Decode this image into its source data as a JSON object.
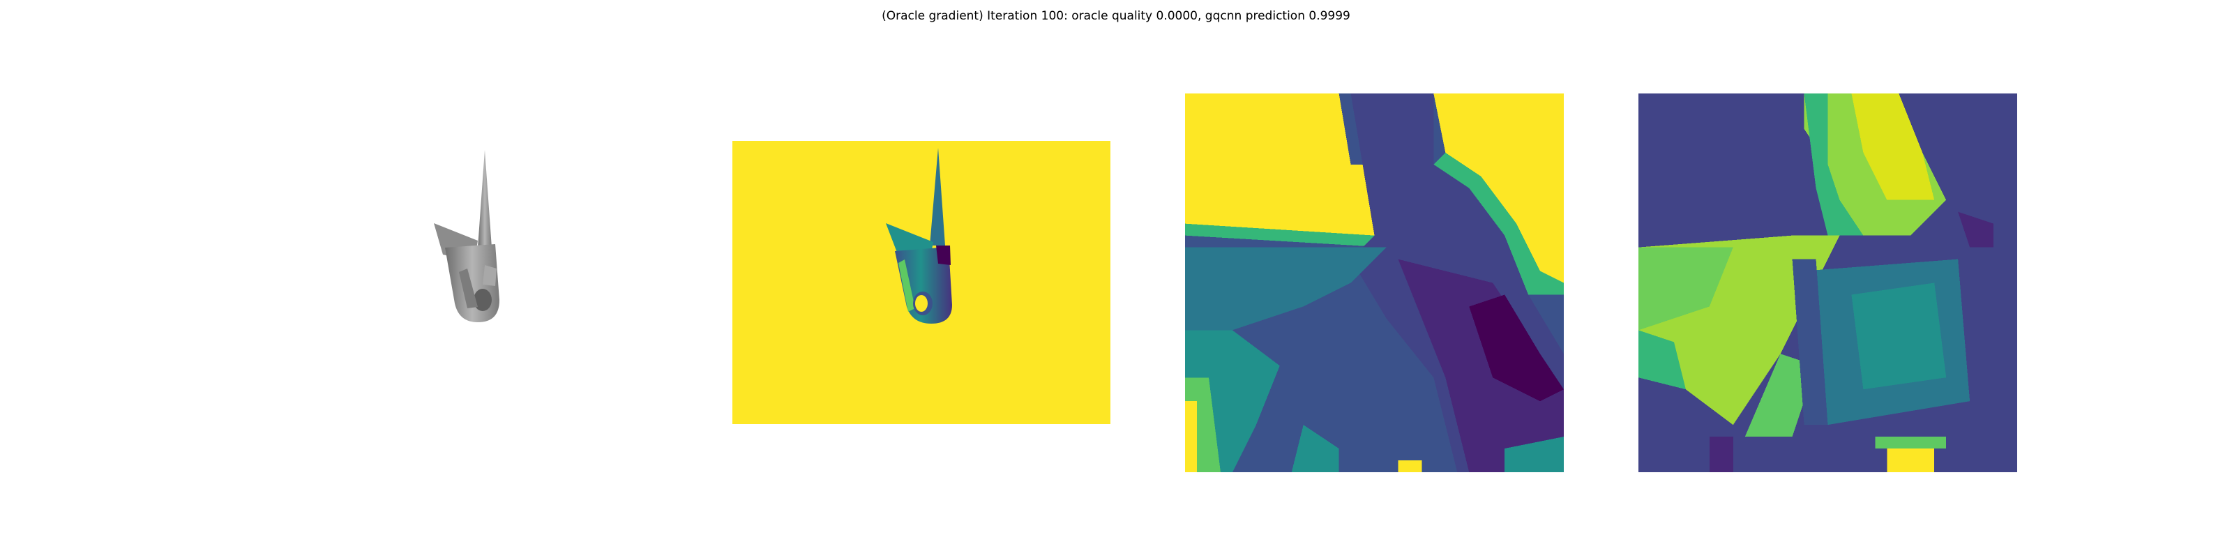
{
  "figure": {
    "title": "(Oracle gradient) Iteration 100: oracle quality 0.0000, gqcnn prediction 0.9999"
  },
  "panels": [
    {
      "name": "rendered-object",
      "colormap": "gray"
    },
    {
      "name": "depth-image",
      "colormap": "viridis"
    },
    {
      "name": "depth-crop",
      "colormap": "viridis"
    },
    {
      "name": "gradient-crop",
      "colormap": "viridis"
    }
  ],
  "colors": {
    "viridis_yellow": "#fde725",
    "viridis_green": "#5ec962",
    "viridis_teal": "#21918c",
    "viridis_blue": "#3b528b",
    "viridis_purple": "#440154",
    "object_gray": "#9a9a9a"
  }
}
